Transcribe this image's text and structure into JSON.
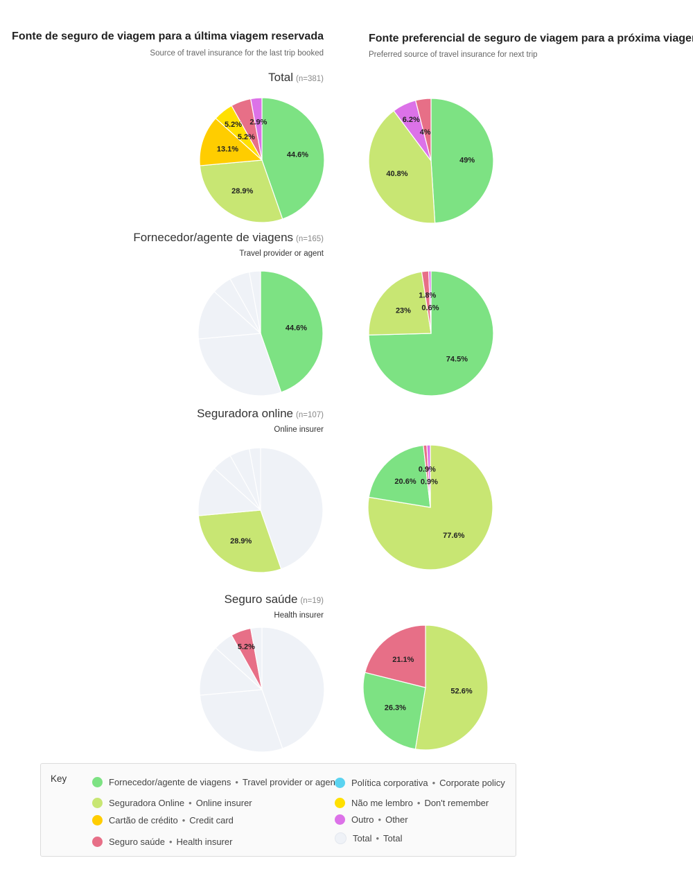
{
  "left_header": {
    "title": "Fonte de seguro de viagem para a última viagem reservada",
    "subtitle": "Source of travel insurance for the last trip booked"
  },
  "right_header": {
    "title": "Fonte preferencial de seguro de viagem para a próxima viagem",
    "subtitle": "Preferred source of travel insurance for next trip"
  },
  "colors": {
    "travel_provider": "#7de283",
    "online_insurer": "#c8e673",
    "credit_card": "#ffcd00",
    "health_insurer": "#e76f87",
    "corporate_policy": "#5bd3f0",
    "dont_remember": "#ffe000",
    "other": "#dc72e8",
    "total": "#eff2f7"
  },
  "groups": [
    {
      "title": "Total",
      "n": "(n=381)",
      "subtitle": ""
    },
    {
      "title": "Fornecedor/agente de viagens",
      "n": "(n=165)",
      "subtitle": "Travel provider or agent"
    },
    {
      "title": "Seguradora online",
      "n": "(n=107)",
      "subtitle": "Online insurer"
    },
    {
      "title": "Seguro saúde",
      "n": "(n=19)",
      "subtitle": "Health insurer"
    }
  ],
  "chart_data": [
    {
      "type": "pie",
      "group": "Total",
      "side": "last trip",
      "slices": [
        {
          "category": "travel_provider",
          "value": 44.6,
          "label": "44.6%"
        },
        {
          "category": "online_insurer",
          "value": 28.9,
          "label": "28.9%"
        },
        {
          "category": "credit_card",
          "value": 13.1,
          "label": "13.1%"
        },
        {
          "category": "dont_remember",
          "value": 5.2,
          "label": "5.2%"
        },
        {
          "category": "health_insurer",
          "value": 5.2,
          "label": "5.2%"
        },
        {
          "category": "other",
          "value": 2.9,
          "label": "2.9%"
        }
      ]
    },
    {
      "type": "pie",
      "group": "Total",
      "side": "next trip",
      "slices": [
        {
          "category": "travel_provider",
          "value": 49,
          "label": "49%"
        },
        {
          "category": "online_insurer",
          "value": 40.8,
          "label": "40.8%"
        },
        {
          "category": "other",
          "value": 6.2,
          "label": "6.2%"
        },
        {
          "category": "health_insurer",
          "value": 4,
          "label": "4%"
        }
      ]
    },
    {
      "type": "pie",
      "group": "Fornecedor/agente de viagens",
      "side": "last trip",
      "slices": [
        {
          "category": "travel_provider",
          "value": 44.6,
          "label": "44.6%"
        },
        {
          "category": "total",
          "value": 28.9,
          "label": ""
        },
        {
          "category": "total",
          "value": 13.1,
          "label": ""
        },
        {
          "category": "total",
          "value": 5.2,
          "label": ""
        },
        {
          "category": "total",
          "value": 5.2,
          "label": ""
        },
        {
          "category": "total",
          "value": 2.9,
          "label": ""
        }
      ]
    },
    {
      "type": "pie",
      "group": "Fornecedor/agente de viagens",
      "side": "next trip",
      "slices": [
        {
          "category": "travel_provider",
          "value": 74.5,
          "label": "74.5%"
        },
        {
          "category": "online_insurer",
          "value": 23,
          "label": "23%"
        },
        {
          "category": "health_insurer",
          "value": 1.8,
          "label": "1.8%"
        },
        {
          "category": "other",
          "value": 0.6,
          "label": "0.6%"
        }
      ]
    },
    {
      "type": "pie",
      "group": "Seguradora online",
      "side": "last trip",
      "slices": [
        {
          "category": "total",
          "value": 44.6,
          "label": ""
        },
        {
          "category": "online_insurer",
          "value": 28.9,
          "label": "28.9%"
        },
        {
          "category": "total",
          "value": 13.1,
          "label": ""
        },
        {
          "category": "total",
          "value": 5.2,
          "label": ""
        },
        {
          "category": "total",
          "value": 5.2,
          "label": ""
        },
        {
          "category": "total",
          "value": 2.9,
          "label": ""
        }
      ]
    },
    {
      "type": "pie",
      "group": "Seguradora online",
      "side": "next trip",
      "slices": [
        {
          "category": "online_insurer",
          "value": 77.6,
          "label": "77.6%"
        },
        {
          "category": "travel_provider",
          "value": 20.6,
          "label": "20.6%"
        },
        {
          "category": "health_insurer",
          "value": 0.9,
          "label": "0.9%"
        },
        {
          "category": "other",
          "value": 0.9,
          "label": "0.9%"
        }
      ]
    },
    {
      "type": "pie",
      "group": "Seguro saúde",
      "side": "last trip",
      "slices": [
        {
          "category": "total",
          "value": 44.6,
          "label": ""
        },
        {
          "category": "total",
          "value": 28.9,
          "label": ""
        },
        {
          "category": "total",
          "value": 13.1,
          "label": ""
        },
        {
          "category": "total",
          "value": 5.2,
          "label": ""
        },
        {
          "category": "health_insurer",
          "value": 5.2,
          "label": "5.2%"
        },
        {
          "category": "total",
          "value": 2.9,
          "label": ""
        }
      ]
    },
    {
      "type": "pie",
      "group": "Seguro saúde",
      "side": "next trip",
      "slices": [
        {
          "category": "online_insurer",
          "value": 52.6,
          "label": "52.6%"
        },
        {
          "category": "travel_provider",
          "value": 26.3,
          "label": "26.3%"
        },
        {
          "category": "health_insurer",
          "value": 21.1,
          "label": "21.1%"
        }
      ]
    }
  ],
  "key": {
    "title": "Key",
    "items": [
      {
        "category": "travel_provider",
        "pt": "Fornecedor/agente de viagens",
        "en": "Travel provider or agent"
      },
      {
        "category": "online_insurer",
        "pt": "Seguradora Online",
        "en": "Online insurer"
      },
      {
        "category": "credit_card",
        "pt": "Cartão de crédito",
        "en": "Credit card"
      },
      {
        "category": "health_insurer",
        "pt": "Seguro saúde",
        "en": "Health insurer"
      },
      {
        "category": "corporate_policy",
        "pt": "Política corporativa",
        "en": "Corporate policy"
      },
      {
        "category": "dont_remember",
        "pt": "Não me lembro",
        "en": "Don't remember"
      },
      {
        "category": "other",
        "pt": "Outro",
        "en": "Other"
      },
      {
        "category": "total",
        "pt": "Total",
        "en": "Total"
      }
    ]
  }
}
